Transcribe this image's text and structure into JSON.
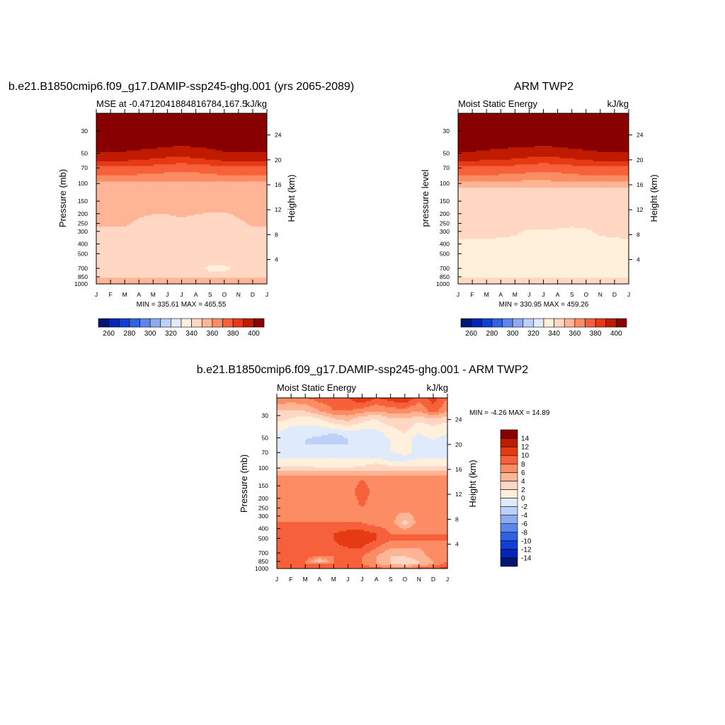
{
  "chart_data": [
    {
      "type": "heatmap",
      "title": "b.e21.B1850cmip6.f09_g17.DAMIP-ssp245-ghg.001 (yrs 2065-2089)",
      "left_string": "MSE at -0.4712041884816784,167.5",
      "right_string": "kJ/kg",
      "ylabel": "Pressure (mb)",
      "y2label": "Height (km)",
      "x_ticks": [
        "J",
        "F",
        "M",
        "A",
        "M",
        "J",
        "J",
        "A",
        "S",
        "O",
        "N",
        "D",
        "J"
      ],
      "p_ticks": [
        30,
        50,
        70,
        100,
        150,
        200,
        250,
        300,
        400,
        500,
        700,
        850,
        1000
      ],
      "p_range": [
        20,
        1000
      ],
      "y_log": true,
      "height_ticks": [
        4,
        8,
        12,
        16,
        20,
        24
      ],
      "stats": "MIN = 335.61 MAX = 465.55",
      "months": [
        0,
        1,
        2,
        3,
        4,
        5,
        6,
        7,
        8,
        9,
        10,
        11,
        12
      ],
      "levels": [
        20,
        45,
        55,
        62,
        70,
        80,
        90,
        100,
        150,
        250,
        400,
        550,
        700,
        800,
        870,
        1000
      ],
      "z": [
        [
          440,
          440,
          440,
          440,
          440,
          440,
          440,
          440,
          440,
          440,
          440,
          440,
          440
        ],
        [
          402,
          402,
          402,
          401,
          400,
          398,
          397,
          398,
          400,
          402,
          402,
          402,
          402
        ],
        [
          396,
          396,
          396,
          394,
          392,
          390,
          389,
          391,
          394,
          396,
          396,
          396,
          396
        ],
        [
          387,
          387,
          387,
          385,
          384,
          382,
          381,
          382,
          384,
          387,
          387,
          387,
          387
        ],
        [
          378,
          378,
          378,
          377,
          376,
          375,
          374,
          375,
          376,
          378,
          378,
          378,
          378
        ],
        [
          372,
          372,
          372,
          371,
          370,
          369,
          368,
          369,
          370,
          372,
          372,
          372,
          372
        ],
        [
          365,
          365,
          365,
          364,
          364,
          363,
          363,
          364,
          365,
          365,
          365,
          365,
          365
        ],
        [
          356,
          356,
          356,
          356,
          356,
          356,
          356,
          356,
          356,
          356,
          356,
          356,
          356
        ],
        [
          353,
          353,
          353,
          353,
          353,
          353,
          353,
          353,
          353,
          353,
          353,
          353,
          353
        ],
        [
          351,
          351,
          351,
          349,
          348,
          348,
          349,
          348,
          347,
          347,
          349,
          351,
          351
        ],
        [
          345,
          345,
          345,
          345,
          345,
          345,
          345,
          345,
          345,
          345,
          345,
          345,
          345
        ],
        [
          345,
          345,
          345,
          345,
          345,
          345,
          345,
          345,
          345,
          345,
          345,
          345,
          345
        ],
        [
          346,
          346,
          346,
          346,
          346,
          346,
          345,
          342,
          338,
          338,
          342,
          345,
          346
        ],
        [
          346,
          346,
          346,
          346,
          346,
          346,
          346,
          344,
          342,
          342,
          344,
          346,
          346
        ],
        [
          351,
          351,
          351,
          351,
          351,
          351,
          351,
          351,
          351,
          351,
          351,
          351,
          351
        ],
        [
          352,
          352,
          352,
          352,
          352,
          352,
          352,
          352,
          352,
          352,
          352,
          352,
          352
        ]
      ],
      "colorbar": {
        "labels": [
          "260",
          "280",
          "300",
          "320",
          "340",
          "360",
          "380",
          "400"
        ],
        "cmin": 250,
        "step": 10,
        "n": 16
      }
    },
    {
      "type": "heatmap",
      "title": "ARM TWP2",
      "left_string": "Moist Static Energy",
      "right_string": "kJ/kg",
      "ylabel": "pressure level",
      "y2label": "Height (km)",
      "x_ticks": [
        "J",
        "F",
        "M",
        "A",
        "M",
        "J",
        "J",
        "A",
        "S",
        "O",
        "N",
        "D",
        "J"
      ],
      "p_ticks": [
        30,
        50,
        70,
        100,
        150,
        200,
        250,
        300,
        400,
        500,
        700,
        850,
        1000
      ],
      "p_range": [
        20,
        1000
      ],
      "y_log": true,
      "height_ticks": [
        4,
        8,
        12,
        16,
        20,
        24
      ],
      "stats": "MIN = 330.95 MAX = 459.26",
      "months": [
        0,
        1,
        2,
        3,
        4,
        5,
        6,
        7,
        8,
        9,
        10,
        11,
        12
      ],
      "levels": [
        20,
        45,
        55,
        62,
        70,
        80,
        90,
        100,
        120,
        200,
        300,
        400,
        550,
        700,
        850,
        880,
        1000
      ],
      "z": [
        [
          440,
          440,
          440,
          440,
          440,
          440,
          440,
          440,
          440,
          440,
          440,
          440,
          440
        ],
        [
          402,
          402,
          401,
          400,
          399,
          398,
          397,
          398,
          400,
          401,
          402,
          402,
          402
        ],
        [
          396,
          396,
          395,
          394,
          392,
          390,
          389,
          390,
          392,
          395,
          396,
          396,
          396
        ],
        [
          387,
          387,
          386,
          385,
          384,
          382,
          381,
          382,
          384,
          386,
          387,
          387,
          387
        ],
        [
          378,
          378,
          378,
          377,
          376,
          375,
          374,
          375,
          376,
          378,
          378,
          378,
          378
        ],
        [
          372,
          372,
          372,
          371,
          370,
          369,
          368,
          369,
          370,
          372,
          372,
          372,
          372
        ],
        [
          365,
          365,
          365,
          364,
          364,
          363,
          363,
          364,
          365,
          365,
          365,
          365,
          365
        ],
        [
          355,
          355,
          355,
          355,
          355,
          355,
          355,
          355,
          355,
          355,
          355,
          355,
          355
        ],
        [
          346,
          346,
          346,
          346,
          346,
          346,
          346,
          346,
          346,
          346,
          346,
          346,
          346
        ],
        [
          346,
          346,
          346,
          346,
          346,
          346,
          346,
          346,
          346,
          346,
          346,
          346,
          346
        ],
        [
          343,
          343,
          343,
          342,
          341,
          339,
          339,
          339,
          338,
          339,
          341,
          342,
          343
        ],
        [
          338,
          338,
          338,
          338,
          338,
          338,
          338,
          338,
          338,
          338,
          338,
          338,
          338
        ],
        [
          337,
          337,
          337,
          337,
          337,
          337,
          337,
          337,
          337,
          337,
          337,
          337,
          337
        ],
        [
          337,
          337,
          337,
          337,
          337,
          337,
          337,
          337,
          337,
          337,
          337,
          337,
          337
        ],
        [
          337,
          337,
          337,
          337,
          337,
          337,
          337,
          337,
          337,
          337,
          337,
          337,
          337
        ],
        [
          343,
          343,
          343,
          343,
          343,
          343,
          343,
          343,
          343,
          343,
          343,
          343,
          343
        ],
        [
          344,
          344,
          344,
          344,
          344,
          344,
          344,
          344,
          344,
          344,
          344,
          344,
          344
        ]
      ],
      "colorbar": {
        "labels": [
          "260",
          "280",
          "300",
          "320",
          "340",
          "360",
          "380",
          "400"
        ],
        "cmin": 250,
        "step": 10,
        "n": 16
      }
    },
    {
      "type": "heatmap",
      "title": "b.e21.B1850cmip6.f09_g17.DAMIP-ssp245-ghg.001 - ARM TWP2",
      "left_string": "Moist Static Energy",
      "right_string": "kJ/kg",
      "ylabel": "Pressure (mb)",
      "y2label": "Height (km)",
      "x_ticks": [
        "J",
        "F",
        "M",
        "A",
        "M",
        "J",
        "J",
        "A",
        "S",
        "O",
        "N",
        "D",
        "J"
      ],
      "p_ticks": [
        30,
        50,
        70,
        100,
        150,
        200,
        250,
        300,
        400,
        500,
        700,
        850,
        1000
      ],
      "p_range": [
        20,
        1000
      ],
      "y_log": true,
      "height_ticks": [
        4,
        8,
        12,
        16,
        20,
        24
      ],
      "stats": "MIN =  -4.26 MAX =  14.89",
      "months": [
        0,
        1,
        2,
        3,
        4,
        5,
        6,
        7,
        8,
        9,
        10,
        11,
        12
      ],
      "levels": [
        20,
        27,
        32,
        38,
        45,
        52,
        58,
        68,
        80,
        90,
        100,
        110,
        130,
        170,
        250,
        350,
        450,
        520,
        620,
        750,
        850,
        900,
        1000
      ],
      "z": [
        [
          8,
          7,
          8,
          9,
          9,
          10,
          12,
          10,
          11,
          12,
          9,
          11,
          8
        ],
        [
          4,
          4,
          4,
          6,
          8,
          8,
          7,
          6,
          7,
          7,
          6,
          9,
          6
        ],
        [
          3,
          2,
          1,
          2,
          4,
          5,
          3,
          2,
          4,
          4,
          3,
          4,
          3
        ],
        [
          1,
          0,
          0,
          0,
          1,
          2,
          1,
          1,
          2,
          3,
          1,
          2,
          1
        ],
        [
          0,
          -1,
          -1,
          -1,
          -2,
          -1,
          -1,
          -1,
          1,
          2,
          0,
          1,
          0
        ],
        [
          -2,
          -2,
          -2,
          -3,
          -4,
          -2,
          -2,
          -1,
          0,
          1,
          -1,
          0,
          -1
        ],
        [
          -2,
          -2,
          -2,
          -2,
          -2,
          -2,
          -1,
          -1,
          0,
          1,
          -1,
          0,
          -2
        ],
        [
          -2,
          -2,
          -2,
          -1,
          -1,
          -2,
          -2,
          -1,
          0,
          1,
          -1,
          0,
          -1
        ],
        [
          0,
          0,
          0,
          0,
          0,
          0,
          0,
          0,
          -1,
          -1,
          0,
          0,
          0
        ],
        [
          1,
          1,
          1,
          1,
          1,
          1,
          1,
          2,
          1,
          1,
          1,
          1,
          1
        ],
        [
          3,
          3,
          3,
          2,
          2,
          2,
          3,
          3,
          3,
          3,
          3,
          3,
          3
        ],
        [
          5,
          5,
          5,
          5,
          5,
          5,
          5,
          5,
          5,
          5,
          5,
          5,
          5
        ],
        [
          7,
          7,
          7,
          7,
          7,
          7,
          8,
          7,
          7,
          7,
          7,
          7,
          7
        ],
        [
          7,
          7,
          8,
          7,
          7,
          7,
          9,
          7,
          7,
          7,
          7,
          7,
          7
        ],
        [
          7,
          7,
          7,
          7,
          7,
          7,
          8,
          7,
          7,
          7,
          7,
          7,
          7
        ],
        [
          8,
          8,
          8,
          8,
          8,
          8,
          8,
          7,
          7,
          3,
          7,
          7,
          7
        ],
        [
          8,
          8,
          8,
          9,
          10,
          11,
          11,
          10,
          8,
          8,
          8,
          8,
          8
        ],
        [
          8,
          8,
          8,
          9,
          10,
          12,
          11,
          10,
          8,
          8,
          8,
          8,
          8
        ],
        [
          8,
          8,
          8,
          8,
          9,
          10,
          10,
          8,
          6,
          6,
          6,
          7,
          8
        ],
        [
          9,
          9,
          9,
          8,
          8,
          8,
          8,
          6,
          4,
          4,
          5,
          7,
          8
        ],
        [
          9,
          8,
          8,
          3,
          8,
          8,
          8,
          6,
          4,
          3,
          4,
          6,
          8
        ],
        [
          10,
          9,
          8,
          8,
          8,
          8,
          8,
          6,
          4,
          3,
          4,
          6,
          9
        ],
        [
          10,
          9,
          9,
          9,
          9,
          9,
          9,
          9,
          8,
          8,
          9,
          10,
          11
        ]
      ],
      "colorbar": {
        "labels": [
          "14",
          "12",
          "10",
          "8",
          "6",
          "4",
          "2",
          "0",
          "-2",
          "-4",
          "-6",
          "-8",
          "-10",
          "-12",
          "-14"
        ],
        "cmin": -16,
        "step": 2,
        "n": 16
      }
    }
  ],
  "colors": {
    "palette": [
      "#001472",
      "#0425b6",
      "#0f3fd6",
      "#2f62e2",
      "#5c86ec",
      "#8eaaf2",
      "#bdd0f7",
      "#dfeafb",
      "#fff0dc",
      "#ffd7c3",
      "#fdb596",
      "#fc8c63",
      "#f6603b",
      "#e63a14",
      "#c01a00",
      "#880000"
    ]
  }
}
